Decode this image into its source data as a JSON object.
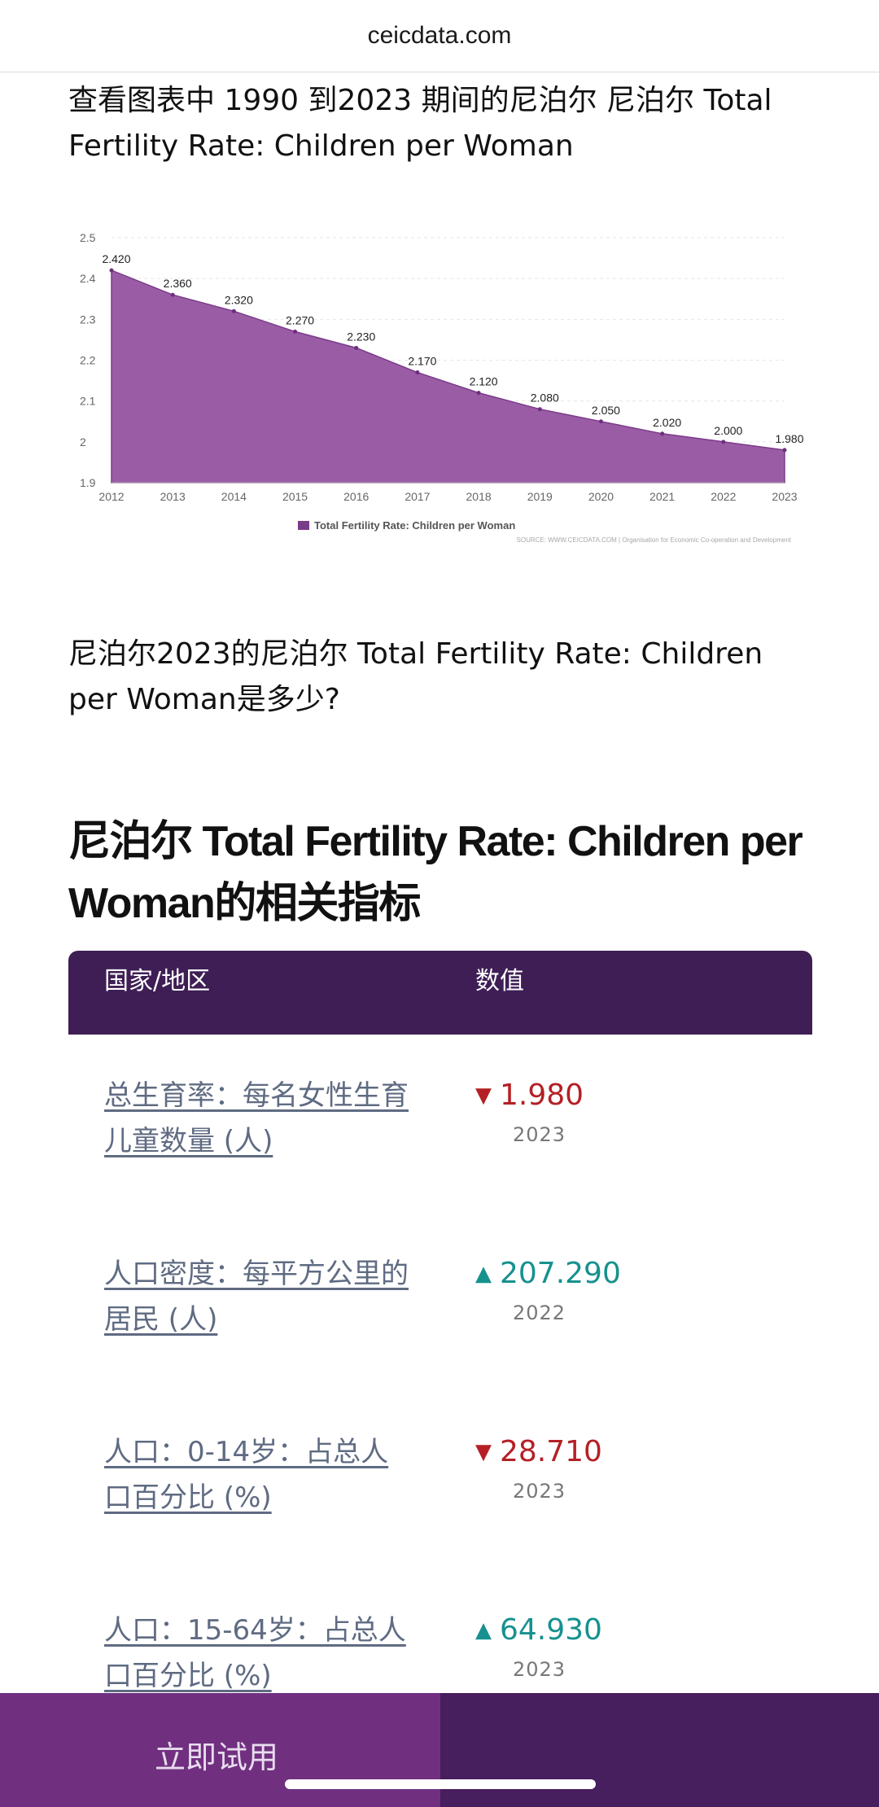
{
  "browser": {
    "url": "ceicdata.com"
  },
  "intro_text": "查看图表中 1990 到2023 期间的尼泊尔 尼泊尔 Total Fertility Rate: Children per Woman",
  "chart_data": {
    "type": "area",
    "categories": [
      "2012",
      "2013",
      "2014",
      "2015",
      "2016",
      "2017",
      "2018",
      "2019",
      "2020",
      "2021",
      "2022",
      "2023"
    ],
    "series": [
      {
        "name": "Total Fertility Rate: Children per Woman",
        "values": [
          2.42,
          2.36,
          2.32,
          2.27,
          2.23,
          2.17,
          2.12,
          2.08,
          2.05,
          2.02,
          2.0,
          1.98
        ],
        "value_labels": [
          "2.420",
          "2.360",
          "2.320",
          "2.270",
          "2.230",
          "2.170",
          "2.120",
          "2.080",
          "2.050",
          "2.020",
          "2.000",
          "1.980"
        ],
        "color": "#9b5ca6"
      }
    ],
    "ylim": [
      1.9,
      2.5
    ],
    "yticks": [
      "1.9",
      "2",
      "2.1",
      "2.2",
      "2.3",
      "2.4",
      "2.5"
    ],
    "grid": true,
    "legend": "bottom",
    "source": "SOURCE: WWW.CEICDATA.COM | Organisation for Economic Co-operation and Development"
  },
  "question_text": "尼泊尔2023的尼泊尔 Total Fertility Rate: Children per Woman是多少?",
  "section_title": "尼泊尔 Total Fertility Rate: Children per Woman的相关指标",
  "table": {
    "header_color": "#3e1e55",
    "col_country": "国家/地区",
    "col_value": "数值",
    "rows": [
      {
        "label": "总生育率：每名女性生育儿童数量 (人)",
        "value": "1.980",
        "year": "2023",
        "trend": "down",
        "arrow": "▼"
      },
      {
        "label": "人口密度：每平方公里的居民 (人)",
        "value": "207.290",
        "year": "2022",
        "trend": "up",
        "arrow": "▲"
      },
      {
        "label": "人口：0-14岁：占总人口百分比 (%)",
        "value": "28.710",
        "year": "2023",
        "trend": "down",
        "arrow": "▼"
      },
      {
        "label": "人口：15-64岁：占总人口百分比 (%)",
        "value": "64.930",
        "year": "2023",
        "trend": "up",
        "arrow": "▲"
      }
    ]
  },
  "bottom_bar": {
    "try_label": "立即试用",
    "left_color": "#70307f",
    "right_color": "#471e5e"
  }
}
